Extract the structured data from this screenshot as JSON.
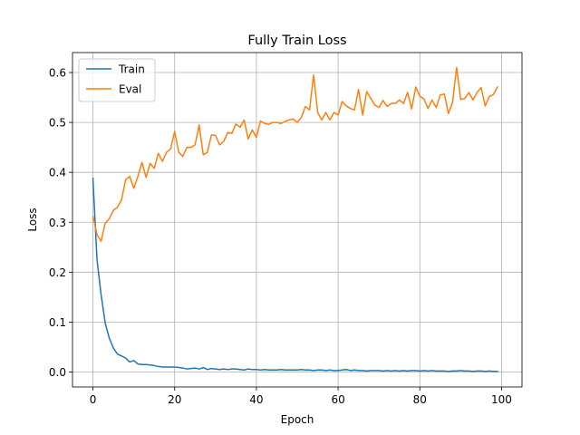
{
  "chart_data": {
    "type": "line",
    "title": "Fully Train Loss",
    "xlabel": "Epoch",
    "ylabel": "Loss",
    "xlim": [
      -5,
      105
    ],
    "ylim": [
      -0.03,
      0.64
    ],
    "xticks": [
      0,
      20,
      40,
      60,
      80,
      100
    ],
    "xtick_labels": [
      "0",
      "20",
      "40",
      "60",
      "80",
      "100"
    ],
    "yticks": [
      0.0,
      0.1,
      0.2,
      0.3,
      0.4,
      0.5,
      0.6
    ],
    "ytick_labels": [
      "0.0",
      "0.1",
      "0.2",
      "0.3",
      "0.4",
      "0.5",
      "0.6"
    ],
    "grid": true,
    "legend_position": "top-left",
    "series": [
      {
        "name": "Train",
        "color": "#1f77b4",
        "x": [
          0,
          1,
          2,
          3,
          4,
          5,
          6,
          7,
          8,
          9,
          10,
          11,
          12,
          13,
          14,
          15,
          16,
          17,
          18,
          19,
          20,
          21,
          22,
          23,
          24,
          25,
          26,
          27,
          28,
          29,
          30,
          31,
          32,
          33,
          34,
          35,
          36,
          37,
          38,
          39,
          40,
          41,
          42,
          43,
          44,
          45,
          46,
          47,
          48,
          49,
          50,
          51,
          52,
          53,
          54,
          55,
          56,
          57,
          58,
          59,
          60,
          61,
          62,
          63,
          64,
          65,
          66,
          67,
          68,
          69,
          70,
          71,
          72,
          73,
          74,
          75,
          76,
          77,
          78,
          79,
          80,
          81,
          82,
          83,
          84,
          85,
          86,
          87,
          88,
          89,
          90,
          91,
          92,
          93,
          94,
          95,
          96,
          97,
          98,
          99
        ],
        "values": [
          0.388,
          0.225,
          0.155,
          0.098,
          0.068,
          0.048,
          0.036,
          0.032,
          0.028,
          0.02,
          0.023,
          0.016,
          0.015,
          0.015,
          0.014,
          0.013,
          0.011,
          0.01,
          0.01,
          0.01,
          0.01,
          0.009,
          0.008,
          0.006,
          0.007,
          0.008,
          0.006,
          0.009,
          0.005,
          0.007,
          0.006,
          0.005,
          0.006,
          0.005,
          0.006,
          0.006,
          0.005,
          0.004,
          0.006,
          0.005,
          0.005,
          0.004,
          0.005,
          0.004,
          0.004,
          0.004,
          0.005,
          0.004,
          0.004,
          0.004,
          0.004,
          0.005,
          0.004,
          0.004,
          0.003,
          0.004,
          0.004,
          0.003,
          0.004,
          0.003,
          0.003,
          0.004,
          0.005,
          0.003,
          0.004,
          0.003,
          0.003,
          0.002,
          0.003,
          0.003,
          0.003,
          0.002,
          0.003,
          0.002,
          0.003,
          0.002,
          0.003,
          0.002,
          0.003,
          0.003,
          0.002,
          0.003,
          0.002,
          0.003,
          0.002,
          0.002,
          0.002,
          0.001,
          0.002,
          0.002,
          0.003,
          0.002,
          0.002,
          0.001,
          0.002,
          0.002,
          0.001,
          0.002,
          0.001,
          0.001
        ]
      },
      {
        "name": "Eval",
        "color": "#ff7f0e",
        "x": [
          0,
          1,
          2,
          3,
          4,
          5,
          6,
          7,
          8,
          9,
          10,
          11,
          12,
          13,
          14,
          15,
          16,
          17,
          18,
          19,
          20,
          21,
          22,
          23,
          24,
          25,
          26,
          27,
          28,
          29,
          30,
          31,
          32,
          33,
          34,
          35,
          36,
          37,
          38,
          39,
          40,
          41,
          42,
          43,
          44,
          45,
          46,
          47,
          48,
          49,
          50,
          51,
          52,
          53,
          54,
          55,
          56,
          57,
          58,
          59,
          60,
          61,
          62,
          63,
          64,
          65,
          66,
          67,
          68,
          69,
          70,
          71,
          72,
          73,
          74,
          75,
          76,
          77,
          78,
          79,
          80,
          81,
          82,
          83,
          84,
          85,
          86,
          87,
          88,
          89,
          90,
          91,
          92,
          93,
          94,
          95,
          96,
          97,
          98,
          99
        ],
        "values": [
          0.312,
          0.275,
          0.262,
          0.298,
          0.307,
          0.324,
          0.33,
          0.345,
          0.385,
          0.392,
          0.368,
          0.392,
          0.42,
          0.39,
          0.418,
          0.408,
          0.438,
          0.422,
          0.44,
          0.447,
          0.482,
          0.44,
          0.432,
          0.45,
          0.45,
          0.455,
          0.495,
          0.435,
          0.44,
          0.475,
          0.474,
          0.455,
          0.462,
          0.48,
          0.478,
          0.497,
          0.49,
          0.505,
          0.467,
          0.485,
          0.47,
          0.503,
          0.498,
          0.496,
          0.5,
          0.5,
          0.498,
          0.502,
          0.505,
          0.507,
          0.5,
          0.51,
          0.532,
          0.525,
          0.595,
          0.52,
          0.505,
          0.52,
          0.505,
          0.52,
          0.515,
          0.542,
          0.533,
          0.528,
          0.525,
          0.566,
          0.515,
          0.562,
          0.548,
          0.535,
          0.53,
          0.544,
          0.532,
          0.538,
          0.538,
          0.545,
          0.538,
          0.56,
          0.527,
          0.571,
          0.553,
          0.547,
          0.528,
          0.545,
          0.53,
          0.555,
          0.557,
          0.518,
          0.54,
          0.61,
          0.546,
          0.548,
          0.56,
          0.545,
          0.56,
          0.57,
          0.533,
          0.552,
          0.556,
          0.571
        ]
      }
    ]
  }
}
